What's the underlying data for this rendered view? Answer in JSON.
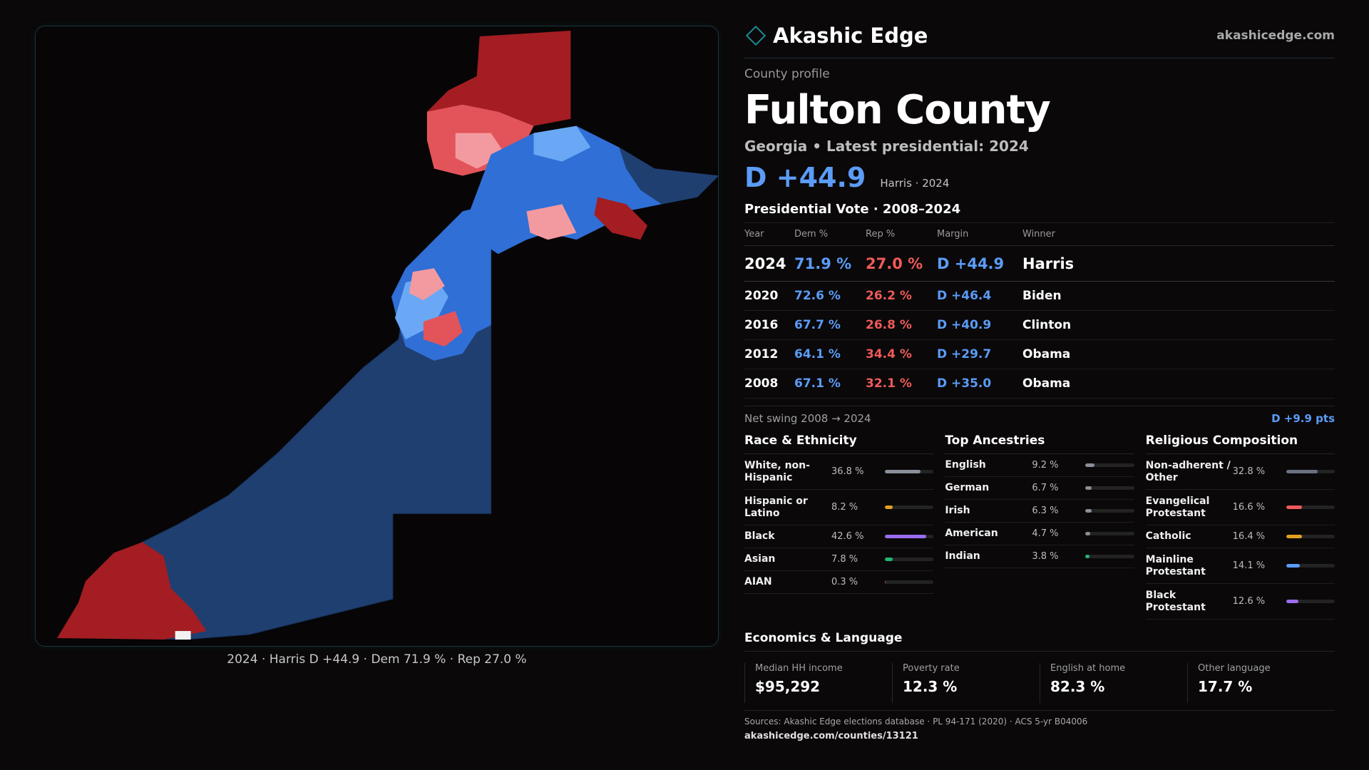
{
  "brand": {
    "name": "Akashic Edge",
    "url": "akashicedge.com"
  },
  "profile": {
    "eyebrow": "County profile",
    "county": "Fulton County",
    "subtitle": "Georgia • Latest presidential: 2024",
    "margin": "D +44.9",
    "margin_note": "Harris · 2024"
  },
  "votes": {
    "title": "Presidential Vote · 2008–2024",
    "headers": {
      "year": "Year",
      "dem": "Dem %",
      "rep": "Rep %",
      "margin": "Margin",
      "winner": "Winner"
    },
    "rows": [
      {
        "year": "2024",
        "dem": "71.9 %",
        "rep": "27.0 %",
        "margin": "D +44.9",
        "winner": "Harris"
      },
      {
        "year": "2020",
        "dem": "72.6 %",
        "rep": "26.2 %",
        "margin": "D +46.4",
        "winner": "Biden"
      },
      {
        "year": "2016",
        "dem": "67.7 %",
        "rep": "26.8 %",
        "margin": "D +40.9",
        "winner": "Clinton"
      },
      {
        "year": "2012",
        "dem": "64.1 %",
        "rep": "34.4 %",
        "margin": "D +29.7",
        "winner": "Obama"
      },
      {
        "year": "2008",
        "dem": "67.1 %",
        "rep": "32.1 %",
        "margin": "D +35.0",
        "winner": "Obama"
      }
    ]
  },
  "swing": {
    "label": "Net swing 2008 → 2024",
    "value": "D +9.9 pts"
  },
  "race": {
    "title": "Race & Ethnicity",
    "items": [
      {
        "label": "White, non-Hispanic",
        "value": "36.8 %",
        "pct": 36.8,
        "color": "#8a8f99"
      },
      {
        "label": "Hispanic or Latino",
        "value": "8.2 %",
        "pct": 8.2,
        "color": "#e0a020"
      },
      {
        "label": "Black",
        "value": "42.6 %",
        "pct": 42.6,
        "color": "#9b6cf0"
      },
      {
        "label": "Asian",
        "value": "7.8 %",
        "pct": 7.8,
        "color": "#22b573"
      },
      {
        "label": "AIAN",
        "value": "0.3 %",
        "pct": 0.3,
        "color": "#d9534f"
      }
    ]
  },
  "ancestry": {
    "title": "Top Ancestries",
    "items": [
      {
        "label": "English",
        "value": "9.2 %",
        "pct": 9.2,
        "color": "#8a8f99"
      },
      {
        "label": "German",
        "value": "6.7 %",
        "pct": 6.7,
        "color": "#8a8f99"
      },
      {
        "label": "Irish",
        "value": "6.3 %",
        "pct": 6.3,
        "color": "#8a8f99"
      },
      {
        "label": "American",
        "value": "4.7 %",
        "pct": 4.7,
        "color": "#8a8f99"
      },
      {
        "label": "Indian",
        "value": "3.8 %",
        "pct": 3.8,
        "color": "#22b573"
      }
    ]
  },
  "religion": {
    "title": "Religious Composition",
    "items": [
      {
        "label": "Non-adherent / Other",
        "value": "32.8 %",
        "pct": 32.8,
        "color": "#6b7080"
      },
      {
        "label": "Evangelical Protestant",
        "value": "16.6 %",
        "pct": 16.6,
        "color": "#ef5a5a"
      },
      {
        "label": "Catholic",
        "value": "16.4 %",
        "pct": 16.4,
        "color": "#e0a020"
      },
      {
        "label": "Mainline Protestant",
        "value": "14.1 %",
        "pct": 14.1,
        "color": "#5b9cf6"
      },
      {
        "label": "Black Protestant",
        "value": "12.6 %",
        "pct": 12.6,
        "color": "#9b6cf0"
      }
    ]
  },
  "economics": {
    "title": "Economics & Language",
    "cards": [
      {
        "label": "Median HH income",
        "value": "$95,292"
      },
      {
        "label": "Poverty rate",
        "value": "12.3 %"
      },
      {
        "label": "English at home",
        "value": "82.3 %"
      },
      {
        "label": "Other language",
        "value": "17.7 %"
      }
    ]
  },
  "sources": {
    "text": "Sources: Akashic Edge elections database · PL 94-171 (2020) · ACS 5-yr B04006",
    "url": "akashicedge.com/counties/13121"
  },
  "map": {
    "caption": "2024 · Harris D +44.9 · Dem 71.9 % · Rep 27.0 %",
    "colors": {
      "dem_strong": "#1f3f70",
      "dem": "#2f6fd6",
      "dem_light": "#6aa8f5",
      "rep_light": "#f39aa0",
      "rep": "#e2545a",
      "rep_strong": "#a31d22"
    }
  }
}
